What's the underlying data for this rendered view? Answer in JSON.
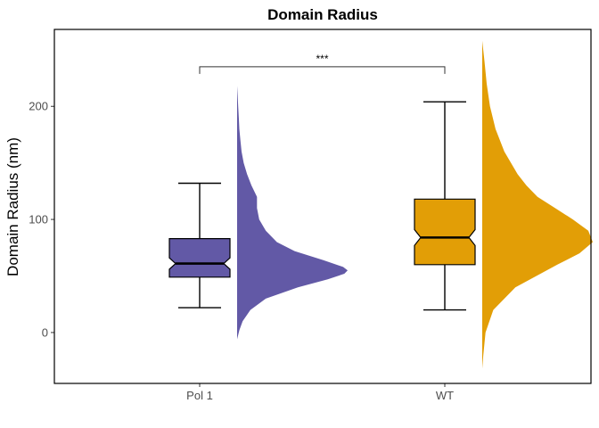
{
  "chart_data": {
    "type": "raincloud",
    "title": "Domain Radius",
    "xlabel": "",
    "ylabel": "Domain Radius (nm)",
    "ylim": [
      -45,
      268
    ],
    "yticks": [
      0,
      100,
      200
    ],
    "categories": [
      "Pol 1",
      "WT"
    ],
    "grid": false,
    "legend": "none",
    "groups": [
      {
        "name": "Pol 1",
        "color": "#6259a6",
        "box": {
          "whisker_low": 22,
          "q1": 49,
          "median": 61,
          "q3": 83,
          "whisker_high": 132,
          "notch_low": 56,
          "notch_high": 66
        },
        "density": {
          "y": [
            -6,
            2,
            10,
            20,
            30,
            40,
            47,
            52,
            55,
            58,
            64,
            72,
            80,
            90,
            100,
            110,
            120,
            130,
            140,
            150,
            160,
            170,
            180,
            190,
            200,
            210,
            218
          ],
          "v": [
            0.0,
            0.02,
            0.05,
            0.12,
            0.26,
            0.55,
            0.82,
            0.97,
            1.0,
            0.96,
            0.78,
            0.52,
            0.36,
            0.26,
            0.2,
            0.18,
            0.18,
            0.13,
            0.09,
            0.06,
            0.04,
            0.03,
            0.02,
            0.015,
            0.01,
            0.005,
            0.0
          ]
        }
      },
      {
        "name": "WT",
        "color": "#e29e06",
        "box": {
          "whisker_low": 20,
          "q1": 60,
          "median": 84,
          "q3": 118,
          "whisker_high": 204,
          "notch_low": 77,
          "notch_high": 91
        },
        "density": {
          "y": [
            -32,
            -20,
            0,
            20,
            40,
            60,
            70,
            80,
            90,
            100,
            110,
            120,
            130,
            140,
            160,
            180,
            200,
            220,
            240,
            258
          ],
          "v": [
            0.0,
            0.01,
            0.03,
            0.1,
            0.3,
            0.68,
            0.88,
            1.0,
            0.96,
            0.82,
            0.66,
            0.5,
            0.4,
            0.32,
            0.2,
            0.12,
            0.07,
            0.04,
            0.02,
            0.0
          ]
        }
      }
    ],
    "annotation": {
      "label": "***",
      "y": 235,
      "from": "Pol 1",
      "to": "WT"
    }
  }
}
